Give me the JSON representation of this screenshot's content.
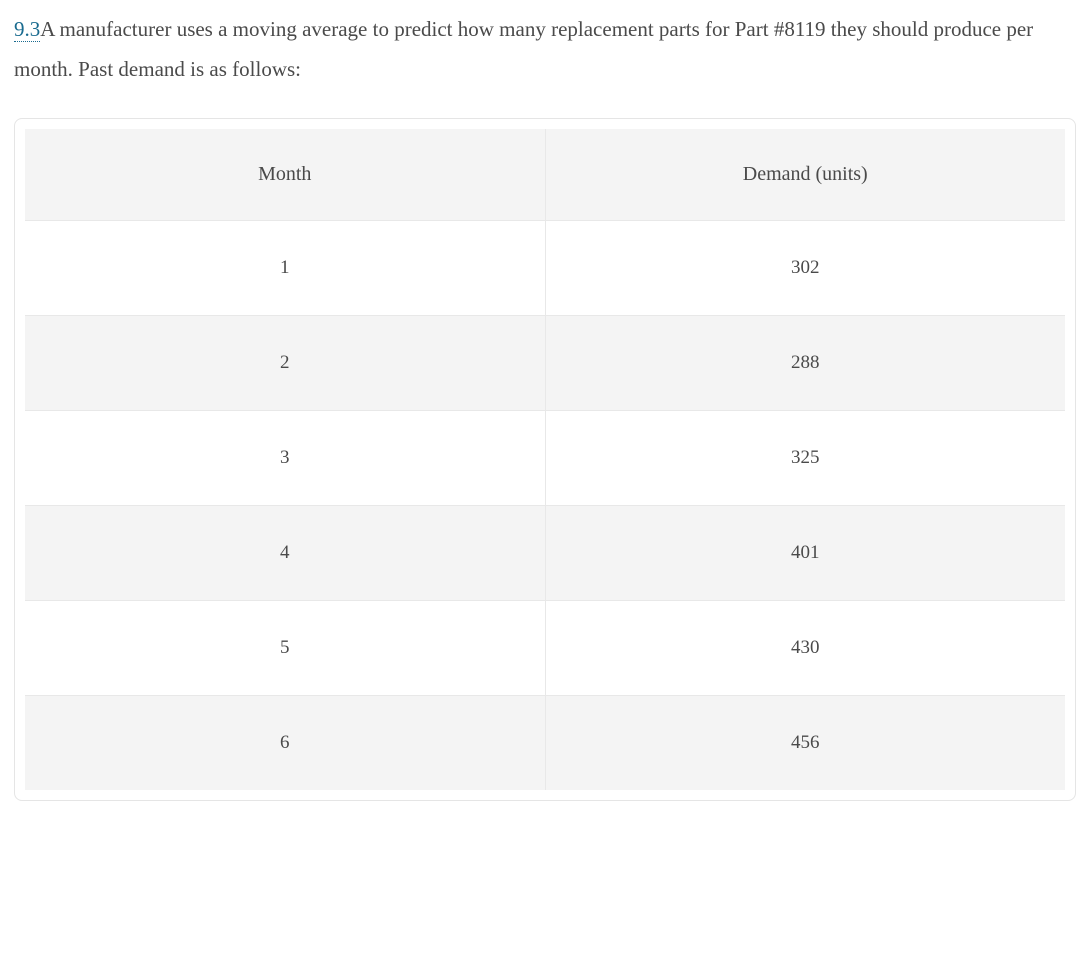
{
  "problem": {
    "number": "9.3",
    "text_part1": "A manufacturer uses a moving average to predict how many replacement parts for Part #8119 they should produce per month. Past demand is as follows:"
  },
  "table": {
    "type": "table",
    "columns": [
      "Month",
      "Demand (units)"
    ],
    "rows": [
      [
        "1",
        "302"
      ],
      [
        "2",
        "288"
      ],
      [
        "3",
        "325"
      ],
      [
        "4",
        "401"
      ],
      [
        "5",
        "430"
      ],
      [
        "6",
        "456"
      ]
    ],
    "header_bg_color": "#f4f4f4",
    "row_alt_bg_color": "#f4f4f4",
    "row_bg_color": "#ffffff",
    "border_color": "#e8e8e8",
    "container_border_color": "#e5e5e5",
    "text_color": "#4a4a4a",
    "number_color": "#1a6b8f",
    "font_family": "Georgia, serif",
    "header_fontsize": 20,
    "cell_fontsize": 19,
    "col_widths": [
      "50%",
      "50%"
    ],
    "cell_align": "center"
  }
}
